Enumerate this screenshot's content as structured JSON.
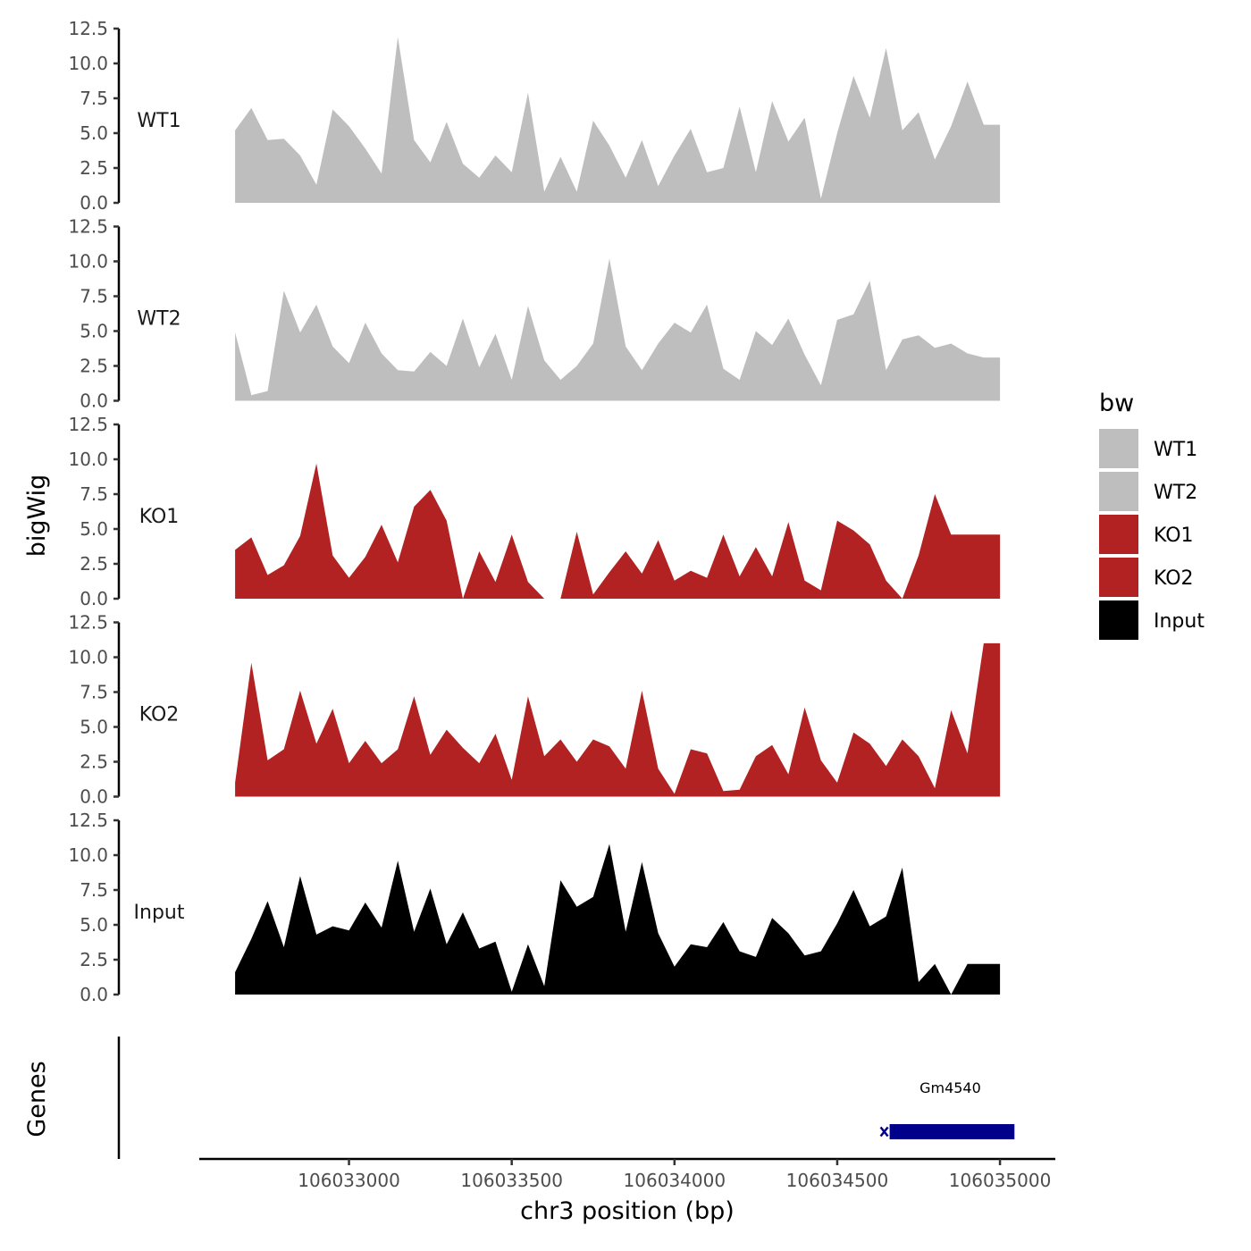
{
  "chart_data": {
    "type": "area",
    "title": "",
    "xlabel": "chr3 position (bp)",
    "ylabel": "bigWig",
    "genes_label": "Genes",
    "xlim": [
      106032540,
      106035170
    ],
    "ylim": [
      0,
      12.5
    ],
    "x_ticks": [
      106033000,
      106033500,
      106034000,
      106034500,
      106035000
    ],
    "x_tick_labels": [
      "106033000",
      "106033500",
      "106034000",
      "106034500",
      "106035000"
    ],
    "y_ticks": [
      0,
      2.5,
      5,
      7.5,
      10,
      12.5
    ],
    "y_tick_labels": [
      "0.0",
      "2.5",
      "5.0",
      "7.5",
      "10.0",
      "12.5"
    ],
    "legend": {
      "title": "bw",
      "position": "right",
      "items": [
        {
          "label": "WT1",
          "color": "#bebebe"
        },
        {
          "label": "WT2",
          "color": "#bebebe"
        },
        {
          "label": "KO1",
          "color": "#b22222"
        },
        {
          "label": "KO2",
          "color": "#b22222"
        },
        {
          "label": "Input",
          "color": "#000000"
        }
      ]
    },
    "x": [
      106032650,
      106032700,
      106032750,
      106032800,
      106032850,
      106032900,
      106032950,
      106033000,
      106033050,
      106033100,
      106033150,
      106033200,
      106033250,
      106033300,
      106033350,
      106033400,
      106033450,
      106033500,
      106033550,
      106033600,
      106033650,
      106033700,
      106033750,
      106033800,
      106033850,
      106033900,
      106033950,
      106034000,
      106034050,
      106034100,
      106034150,
      106034200,
      106034250,
      106034300,
      106034350,
      106034400,
      106034450,
      106034500,
      106034550,
      106034600,
      106034650,
      106034700,
      106034750,
      106034800,
      106034850,
      106034900,
      106034950,
      106035000
    ],
    "series": [
      {
        "name": "WT1",
        "color": "#bebebe",
        "values": [
          5.2,
          6.8,
          4.5,
          4.6,
          3.4,
          1.3,
          6.7,
          5.5,
          3.9,
          2.1,
          11.9,
          4.5,
          2.9,
          5.8,
          2.8,
          1.8,
          3.4,
          2.2,
          7.9,
          0.8,
          3.3,
          0.8,
          5.9,
          4.1,
          1.8,
          4.5,
          1.2,
          3.4,
          5.3,
          2.2,
          2.5,
          6.9,
          2.2,
          7.3,
          4.4,
          6.1,
          0.3,
          5.0,
          9.1,
          6.1,
          11.1,
          5.2,
          6.5,
          3.1,
          5.5,
          8.7,
          5.6,
          5.6
        ]
      },
      {
        "name": "WT2",
        "color": "#bebebe",
        "values": [
          4.9,
          0.4,
          0.7,
          7.9,
          4.9,
          6.9,
          3.9,
          2.7,
          5.6,
          3.4,
          2.2,
          2.1,
          3.5,
          2.5,
          5.9,
          2.4,
          4.8,
          1.5,
          6.8,
          2.9,
          1.5,
          2.5,
          4.1,
          10.2,
          3.9,
          2.2,
          4.1,
          5.6,
          4.9,
          6.9,
          2.3,
          1.5,
          5.0,
          4.0,
          5.9,
          3.3,
          1.1,
          5.8,
          6.2,
          8.6,
          2.2,
          4.4,
          4.7,
          3.8,
          4.1,
          3.4,
          3.1,
          3.1
        ]
      },
      {
        "name": "KO1",
        "color": "#b22222",
        "values": [
          3.5,
          4.4,
          1.7,
          2.4,
          4.5,
          9.7,
          3.1,
          1.5,
          3.0,
          5.3,
          2.6,
          6.6,
          7.8,
          5.6,
          0.0,
          3.4,
          1.2,
          4.6,
          1.2,
          0.0,
          0.0,
          4.8,
          0.3,
          1.9,
          3.4,
          1.8,
          4.2,
          1.3,
          2.0,
          1.5,
          4.6,
          1.6,
          3.7,
          1.6,
          5.5,
          1.3,
          0.6,
          5.6,
          4.9,
          3.9,
          1.3,
          0.0,
          3.1,
          7.5,
          4.6,
          4.6,
          4.6,
          4.6
        ]
      },
      {
        "name": "KO2",
        "color": "#b22222",
        "values": [
          1.0,
          9.6,
          2.6,
          3.4,
          7.6,
          3.8,
          6.3,
          2.4,
          4.0,
          2.4,
          3.4,
          7.2,
          3.0,
          4.8,
          3.5,
          2.4,
          4.5,
          1.2,
          7.2,
          2.9,
          4.1,
          2.5,
          4.1,
          3.6,
          2.0,
          7.6,
          2.0,
          0.2,
          3.4,
          3.1,
          0.4,
          0.5,
          2.9,
          3.7,
          1.6,
          6.4,
          2.6,
          1.0,
          4.6,
          3.8,
          2.2,
          4.1,
          2.9,
          0.6,
          6.2,
          3.1,
          11.0,
          11.0
        ]
      },
      {
        "name": "Input",
        "color": "#000000",
        "values": [
          1.6,
          4.0,
          6.7,
          3.4,
          8.5,
          4.3,
          4.9,
          4.6,
          6.6,
          4.8,
          9.6,
          4.5,
          7.6,
          3.6,
          5.9,
          3.3,
          3.8,
          0.2,
          3.6,
          0.6,
          8.2,
          6.3,
          7.0,
          10.8,
          4.5,
          9.5,
          4.4,
          2.0,
          3.6,
          3.4,
          5.2,
          3.1,
          2.7,
          5.5,
          4.4,
          2.8,
          3.1,
          5.1,
          7.5,
          4.9,
          5.6,
          9.1,
          0.9,
          2.2,
          0.0,
          2.2,
          2.2,
          2.2
        ]
      }
    ],
    "genes": [
      {
        "name": "Gm4540",
        "start": 106034650,
        "end": 106035050,
        "strand": "-",
        "color": "#00008b"
      }
    ]
  }
}
